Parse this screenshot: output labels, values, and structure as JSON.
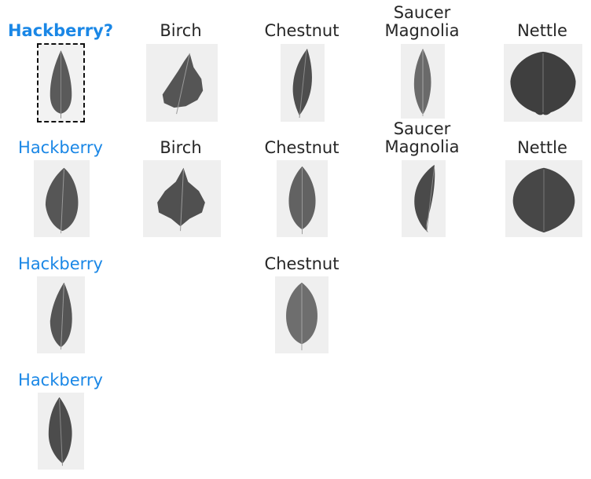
{
  "grid": {
    "rows": [
      [
        {
          "label": "Hackberry?",
          "kind": "query",
          "leaf": "narrow"
        },
        {
          "label": "Birch",
          "kind": "other",
          "leaf": "birch"
        },
        {
          "label": "Chestnut",
          "kind": "other",
          "leaf": "lance"
        },
        {
          "label": "Saucer\nMagnolia",
          "kind": "other",
          "leaf": "lance2"
        },
        {
          "label": "Nettle",
          "kind": "other",
          "leaf": "wide"
        }
      ],
      [
        {
          "label": "Hackberry",
          "kind": "match",
          "leaf": "oval"
        },
        {
          "label": "Birch",
          "kind": "other",
          "leaf": "birch"
        },
        {
          "label": "Chestnut",
          "kind": "other",
          "leaf": "oval"
        },
        {
          "label": "Saucer\nMagnolia",
          "kind": "other",
          "leaf": "lance"
        },
        {
          "label": "Nettle",
          "kind": "other",
          "leaf": "wide"
        }
      ],
      [
        {
          "label": "Hackberry",
          "kind": "match",
          "leaf": "narrow"
        },
        null,
        {
          "label": "Chestnut",
          "kind": "other",
          "leaf": "oval"
        },
        null,
        null
      ],
      [
        {
          "label": "Hackberry",
          "kind": "match",
          "leaf": "narrow"
        },
        null,
        null,
        null,
        null
      ]
    ]
  }
}
